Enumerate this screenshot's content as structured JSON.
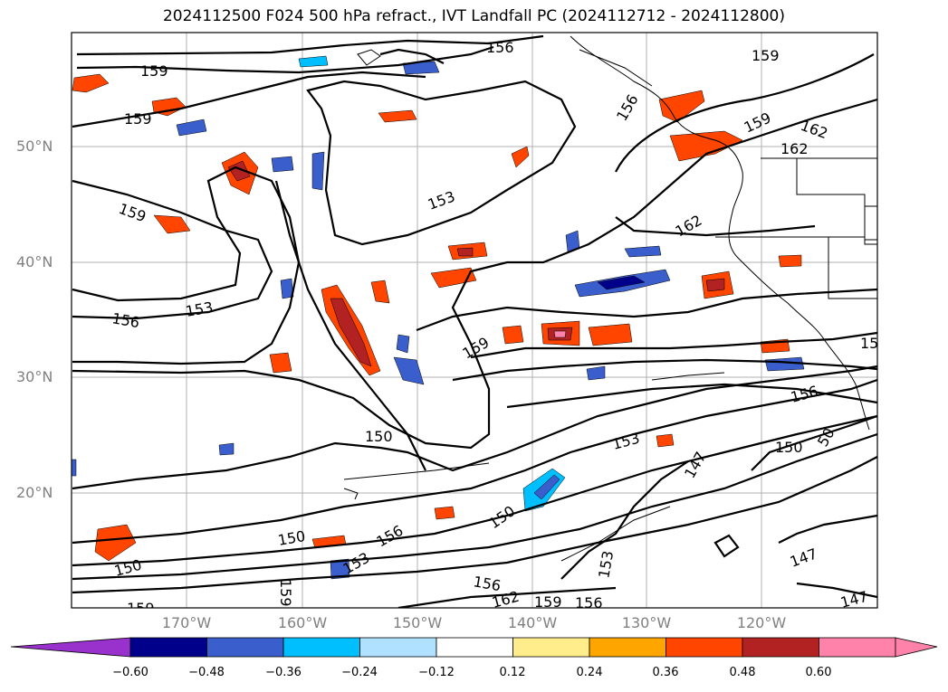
{
  "title": "2024112500 F024 500 hPa refract., IVT Landfall PC (2024112712 - 2024112800)",
  "lat_labels": [
    "50°N",
    "40°N",
    "30°N",
    "20°N"
  ],
  "lon_labels": [
    "170°W",
    "160°W",
    "150°W",
    "140°W",
    "130°W",
    "120°W"
  ],
  "contour_labels": [
    "156",
    "159",
    "159",
    "159",
    "153",
    "156",
    "153",
    "159",
    "162",
    "162",
    "159",
    "162",
    "159",
    "150",
    "153",
    "156",
    "150",
    "147",
    "150",
    "156",
    "150",
    "153",
    "150",
    "147",
    "153",
    "156",
    "162",
    "159",
    "156",
    "159",
    "147",
    "147",
    "15",
    "50",
    "156"
  ],
  "colorbar": {
    "ticks": [
      "−0.60",
      "−0.48",
      "−0.36",
      "−0.24",
      "−0.12",
      "0.12",
      "0.24",
      "0.36",
      "0.48",
      "0.60"
    ],
    "colors": [
      "#9932cc",
      "#00008b",
      "#3a5fcd",
      "#00bfff",
      "#b0e2ff",
      "#ffffff",
      "#ffec8b",
      "#ffa500",
      "#ff4500",
      "#b22222",
      "#ff82ab",
      "#ffb6d1"
    ]
  }
}
